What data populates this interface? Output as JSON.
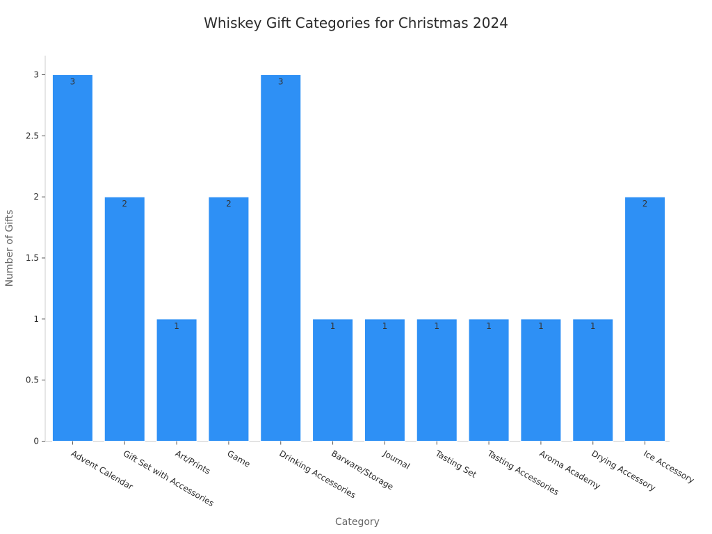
{
  "chart_data": {
    "type": "bar",
    "title": "Whiskey Gift Categories for Christmas 2024",
    "xlabel": "Category",
    "ylabel": "Number of Gifts",
    "categories": [
      "Advent Calendar",
      "Gift Set with Accessories",
      "Art/Prints",
      "Game",
      "Drinking Accessories",
      "Barware/Storage",
      "Journal",
      "Tasting Set",
      "Tasting Accessories",
      "Aroma Academy",
      "Drying Accessory",
      "Ice Accessory"
    ],
    "values": [
      3,
      2,
      1,
      2,
      3,
      1,
      1,
      1,
      1,
      1,
      1,
      2
    ],
    "ylim": [
      0,
      3
    ],
    "yticks": [
      "0",
      "0.5",
      "1",
      "1.5",
      "2",
      "2.5",
      "3"
    ],
    "grid": false,
    "bar_color": "#2e90f5",
    "data_labels": true
  }
}
